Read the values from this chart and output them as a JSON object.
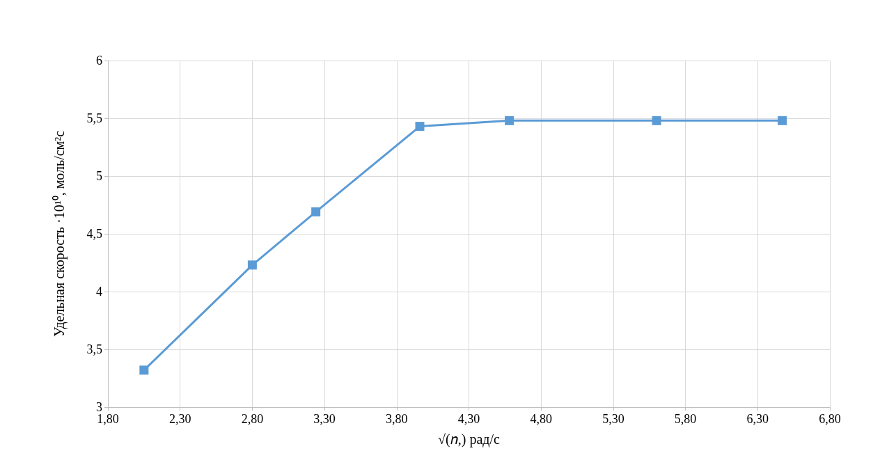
{
  "chart_data": {
    "type": "line",
    "xlabel": "√(𝑛,) рад/с",
    "ylabel": "Удельная скорость ·10¹⁰, моль/см²с",
    "x": [
      2.05,
      2.8,
      3.24,
      3.96,
      4.58,
      5.6,
      6.47
    ],
    "series": [
      {
        "color": "#5b9bd5",
        "values": [
          3.32,
          4.23,
          4.69,
          5.43,
          5.48,
          5.48,
          5.48
        ]
      }
    ],
    "xlim": [
      1.8,
      6.8
    ],
    "xticks": [
      {
        "value": 1.8,
        "label": "1,80"
      },
      {
        "value": 2.3,
        "label": "2,30"
      },
      {
        "value": 2.8,
        "label": "2,80"
      },
      {
        "value": 3.3,
        "label": "3,30"
      },
      {
        "value": 3.8,
        "label": "3,80"
      },
      {
        "value": 4.3,
        "label": "4,30"
      },
      {
        "value": 4.8,
        "label": "4,80"
      },
      {
        "value": 5.3,
        "label": "5,30"
      },
      {
        "value": 5.8,
        "label": "5,80"
      },
      {
        "value": 6.3,
        "label": "6,30"
      },
      {
        "value": 6.8,
        "label": "6,80"
      }
    ],
    "ylim": [
      3,
      6
    ],
    "yticks": [
      3,
      {
        "value": 3.5,
        "label": "3,5"
      },
      4,
      {
        "value": 4.5,
        "label": "4,5"
      },
      5,
      {
        "value": 5.5,
        "label": "5,5"
      },
      6
    ],
    "grid": true,
    "marker": "square",
    "line_style": "solid"
  }
}
